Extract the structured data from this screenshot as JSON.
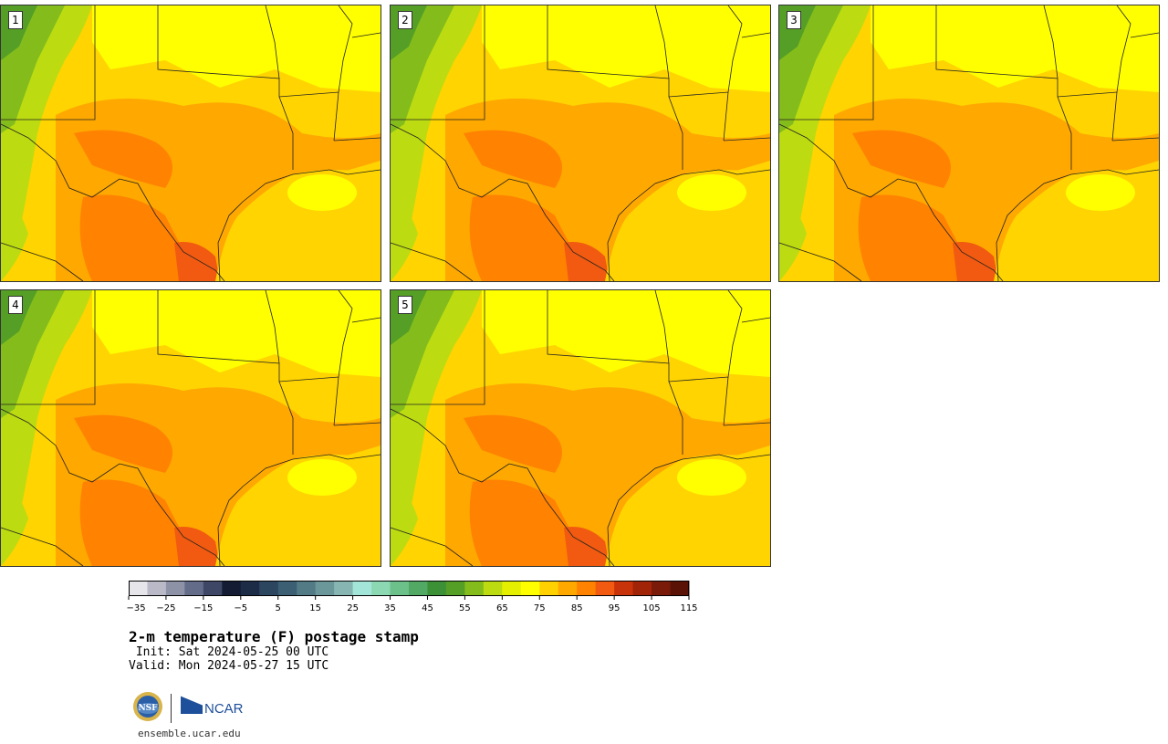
{
  "panels": [
    {
      "label": "1"
    },
    {
      "label": "2"
    },
    {
      "label": "3"
    },
    {
      "label": "4"
    },
    {
      "label": "5"
    }
  ],
  "colorbar": {
    "ticks": [
      "−35",
      "−25",
      "−15",
      "−5",
      "5",
      "15",
      "25",
      "35",
      "45",
      "55",
      "65",
      "75",
      "85",
      "95",
      "105",
      "115"
    ],
    "colors": [
      "#e6e6ea",
      "#b9b9c8",
      "#8d92a6",
      "#636c88",
      "#3f4766",
      "#141c33",
      "#1c2c47",
      "#2c4660",
      "#3d5f74",
      "#527b86",
      "#6b979a",
      "#86b5b2",
      "#a3e5d8",
      "#8bd8b3",
      "#6cc08a",
      "#52a964",
      "#3c9136",
      "#569f26",
      "#84bd1b",
      "#bcdc11",
      "#e5f000",
      "#ffff00",
      "#ffd100",
      "#ffa800",
      "#ff8200",
      "#f15a10",
      "#c93309",
      "#a12408",
      "#7a1a08",
      "#5a1206"
    ]
  },
  "title": "2-m temperature (F) postage stamp",
  "init": " Init: Sat 2024-05-25 00 UTC",
  "valid": "Valid: Mon 2024-05-27 15 UTC",
  "logos": {
    "nsf": "NSF",
    "ncar": "NCAR"
  },
  "site": "ensemble.ucar.edu"
}
